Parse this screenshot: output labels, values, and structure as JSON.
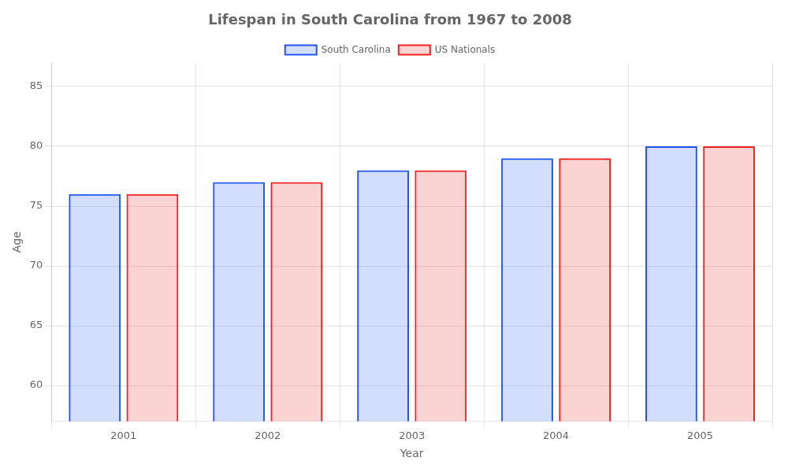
{
  "chart_data": {
    "type": "bar",
    "title": "Lifespan in South Carolina from 1967 to 2008",
    "xlabel": "Year",
    "ylabel": "Age",
    "categories": [
      "2001",
      "2002",
      "2003",
      "2004",
      "2005"
    ],
    "series": [
      {
        "name": "South Carolina",
        "color": "#2255ee",
        "values": [
          76,
          77,
          78,
          79,
          80
        ]
      },
      {
        "name": "US Nationals",
        "color": "#ee2222",
        "values": [
          76,
          77,
          78,
          79,
          80
        ]
      }
    ],
    "ylim": [
      57,
      87
    ],
    "yticks": [
      60,
      65,
      70,
      75,
      80,
      85
    ],
    "grid": true,
    "legend": "top"
  }
}
